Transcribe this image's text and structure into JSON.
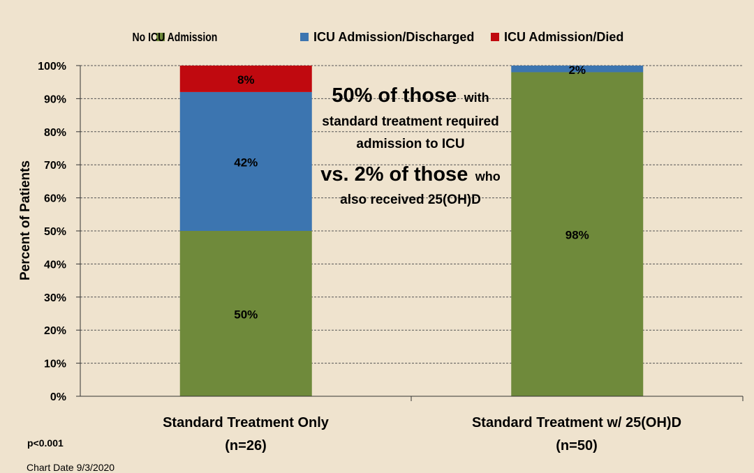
{
  "chart_data": {
    "type": "bar",
    "stacked": true,
    "categories": [
      "Standard Treatment Only",
      "Standard Treatment w/ 25(OH)D"
    ],
    "category_n": [
      "(n=26)",
      "(n=50)"
    ],
    "series": [
      {
        "name": "No ICU Admission",
        "color": "#6f8a3b",
        "values": [
          50,
          98
        ],
        "labels": [
          "50%",
          "98%"
        ]
      },
      {
        "name": "ICU Admission/Discharged",
        "color": "#3c75b0",
        "values": [
          42,
          2
        ],
        "labels": [
          "42%",
          "2%"
        ]
      },
      {
        "name": "ICU Admission/Died",
        "color": "#c0090f",
        "values": [
          8,
          0
        ],
        "labels": [
          "8%",
          ""
        ]
      }
    ],
    "ylabel": "Percent of Patients",
    "ylim": [
      0,
      100
    ],
    "yticks": [
      "0%",
      "10%",
      "20%",
      "30%",
      "40%",
      "50%",
      "60%",
      "70%",
      "80%",
      "90%",
      "100%"
    ],
    "grid": true,
    "legend_position": "top"
  },
  "annotation": {
    "line1_big": "50% of those",
    "line1_small": "with",
    "line2": "standard treatment required",
    "line3": "admission to ICU",
    "line4_big": "vs. 2% of those",
    "line4_small": "who",
    "line5": "also received 25(OH)D"
  },
  "footer": {
    "p_value": "p<0.001",
    "chart_date": "Chart Date 9/3/2020"
  }
}
